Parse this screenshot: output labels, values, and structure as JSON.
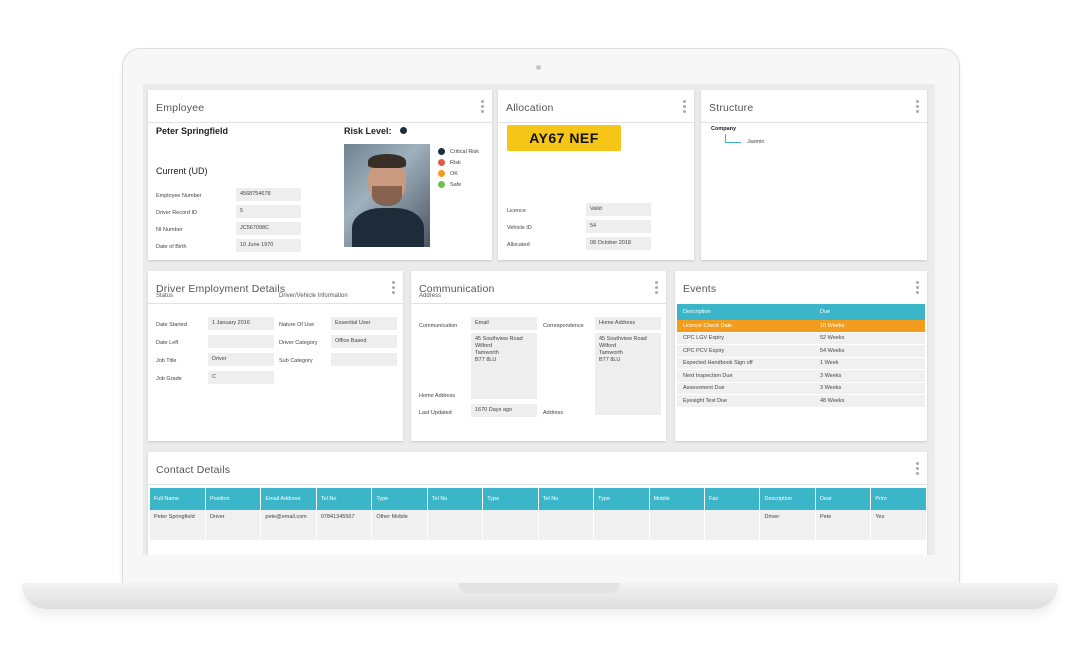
{
  "colors": {
    "accent": "#3ab6c8",
    "highlight": "#f39c1e",
    "plate": "#f5c518",
    "critical": "#1b2e3c",
    "risk": "#e05a47",
    "ok": "#f39c1e",
    "safe": "#6cc04a"
  },
  "employee": {
    "title": "Employee",
    "name": "Peter Springfield",
    "risk_label": "Risk Level:",
    "current_label": "Current (UD)",
    "fields": [
      {
        "label": "Employee Number",
        "value": "4568754678"
      },
      {
        "label": "Driver Record ID",
        "value": "5"
      },
      {
        "label": "NI Number",
        "value": "JC567098C"
      },
      {
        "label": "Date of Birth",
        "value": "10 June 1970"
      }
    ],
    "legend": [
      {
        "label": "Critical Risk",
        "color": "#1b2e3c"
      },
      {
        "label": "Risk",
        "color": "#e05a47"
      },
      {
        "label": "OK",
        "color": "#f39c1e"
      },
      {
        "label": "Safe",
        "color": "#6cc04a"
      }
    ]
  },
  "allocation": {
    "title": "Allocation",
    "plate": "AY67 NEF",
    "fields": [
      {
        "label": "Licence",
        "value": "Valid"
      },
      {
        "label": "Vehicle ID",
        "value": "54"
      },
      {
        "label": "Allocated",
        "value": "08 October 2018"
      }
    ]
  },
  "structure": {
    "title": "Structure",
    "root": "Company",
    "child": "Jasmin"
  },
  "driver": {
    "title": "Driver Employment Details",
    "status_label": "Status",
    "info_label": "Driver/Vehicle Information",
    "left": [
      {
        "label": "Date Started",
        "value": "1 January 2016"
      },
      {
        "label": "Date Left",
        "value": ""
      },
      {
        "label": "Job Title",
        "value": "Driver"
      },
      {
        "label": "Job Grade",
        "value": "C"
      }
    ],
    "right": [
      {
        "label": "Nature Of Use",
        "value": "Essential User"
      },
      {
        "label": "Driver Category",
        "value": "Office Based"
      },
      {
        "label": "Sub Category",
        "value": ""
      }
    ]
  },
  "communication": {
    "title": "Communication",
    "address_label": "Address",
    "communication_label": "Communication",
    "communication_value": "Email",
    "correspondence_label": "Correspondence",
    "correspondence_value": "Home Address",
    "address1": [
      "45 Southview Road",
      "Wilford",
      "Tamworth",
      "B77 8LU"
    ],
    "address2": [
      "45 Southview Road",
      "Wilford",
      "Tamworth",
      "B77 8LU"
    ],
    "home_address_label": "Home Address",
    "last_updated_label": "Last Updated",
    "last_updated_value": "1670 Days ago",
    "address_label2": "Address"
  },
  "events": {
    "title": "Events",
    "columns": [
      "Description",
      "Due"
    ],
    "rows": [
      {
        "description": "Licence Check Date",
        "due": "10 Weeks",
        "highlight": true
      },
      {
        "description": "CPC LGV Expiry",
        "due": "52 Weeks",
        "highlight": false
      },
      {
        "description": "CPC PCV Expiry",
        "due": "54 Weeks",
        "highlight": false
      },
      {
        "description": "Expected Handbook Sign off",
        "due": "1 Week",
        "highlight": false
      },
      {
        "description": "Next Inspection Due",
        "due": "3 Weeks",
        "highlight": false
      },
      {
        "description": "Assessment Due",
        "due": "3 Weeks",
        "highlight": false
      },
      {
        "description": "Eyesight Test Due",
        "due": "48 Weeks",
        "highlight": false
      }
    ]
  },
  "contact": {
    "title": "Contact Details",
    "columns": [
      "Full Name",
      "Position",
      "Email Address",
      "Tel No",
      "Type",
      "Tel No",
      "Type",
      "Tel No",
      "Type",
      "Mobile",
      "Fax",
      "Description",
      "Dear",
      "Prim"
    ],
    "row": [
      "Peter Springfield",
      "Driver",
      "pete@email.com",
      "07841345567",
      "Other Mobile",
      "",
      "",
      "",
      "",
      "",
      "",
      "Driver",
      "Pete",
      "Yes"
    ]
  }
}
